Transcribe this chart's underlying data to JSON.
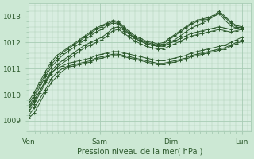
{
  "background_color": "#cce8d4",
  "plot_bg_color": "#d8ede0",
  "grid_color": "#a8ccb4",
  "line_color": "#2d5a2d",
  "ylabel_ticks": [
    1009,
    1010,
    1011,
    1012,
    1013
  ],
  "xlim": [
    0,
    75
  ],
  "ylim": [
    1008.6,
    1013.5
  ],
  "xlabel": "Pression niveau de la mer( hPa )",
  "xtick_positions": [
    0,
    24,
    48,
    72
  ],
  "xtick_labels": [
    "Ven",
    "Sam",
    "Dim",
    "Lun"
  ],
  "series": [
    [
      1009.5,
      1009.8,
      1010.15,
      1010.5,
      1010.85,
      1011.0,
      1011.1,
      1011.2,
      1011.25,
      1011.3,
      1011.35,
      1011.4,
      1011.5,
      1011.55,
      1011.6,
      1011.65,
      1011.65,
      1011.6,
      1011.55,
      1011.5,
      1011.45,
      1011.4,
      1011.35,
      1011.3,
      1011.3,
      1011.35,
      1011.4,
      1011.45,
      1011.5,
      1011.6,
      1011.65,
      1011.7,
      1011.75,
      1011.8,
      1011.85,
      1011.9,
      1012.0,
      1012.1,
      1012.2
    ],
    [
      1009.2,
      1009.5,
      1009.85,
      1010.2,
      1010.6,
      1010.85,
      1011.0,
      1011.1,
      1011.15,
      1011.2,
      1011.25,
      1011.3,
      1011.4,
      1011.45,
      1011.5,
      1011.55,
      1011.55,
      1011.5,
      1011.45,
      1011.4,
      1011.35,
      1011.3,
      1011.25,
      1011.2,
      1011.2,
      1011.25,
      1011.3,
      1011.35,
      1011.4,
      1011.5,
      1011.55,
      1011.6,
      1011.65,
      1011.7,
      1011.75,
      1011.8,
      1011.9,
      1012.0,
      1012.1
    ],
    [
      1009.1,
      1009.3,
      1009.7,
      1010.1,
      1010.45,
      1010.7,
      1010.9,
      1011.05,
      1011.1,
      1011.15,
      1011.2,
      1011.25,
      1011.35,
      1011.4,
      1011.45,
      1011.5,
      1011.5,
      1011.45,
      1011.4,
      1011.35,
      1011.3,
      1011.25,
      1011.2,
      1011.15,
      1011.15,
      1011.2,
      1011.25,
      1011.3,
      1011.35,
      1011.45,
      1011.5,
      1011.55,
      1011.6,
      1011.65,
      1011.7,
      1011.75,
      1011.85,
      1011.95,
      1012.05
    ],
    [
      1009.35,
      1009.65,
      1010.05,
      1010.45,
      1010.8,
      1011.05,
      1011.2,
      1011.35,
      1011.5,
      1011.65,
      1011.8,
      1011.9,
      1012.0,
      1012.1,
      1012.25,
      1012.45,
      1012.5,
      1012.35,
      1012.2,
      1012.05,
      1011.95,
      1011.85,
      1011.8,
      1011.75,
      1011.75,
      1011.85,
      1011.95,
      1012.05,
      1012.15,
      1012.25,
      1012.3,
      1012.35,
      1012.4,
      1012.45,
      1012.5,
      1012.45,
      1012.4,
      1012.45,
      1012.5
    ],
    [
      1009.45,
      1009.75,
      1010.15,
      1010.55,
      1010.9,
      1011.15,
      1011.3,
      1011.45,
      1011.6,
      1011.75,
      1011.9,
      1012.0,
      1012.1,
      1012.2,
      1012.35,
      1012.55,
      1012.6,
      1012.45,
      1012.3,
      1012.15,
      1012.05,
      1011.95,
      1011.9,
      1011.85,
      1011.85,
      1011.95,
      1012.05,
      1012.15,
      1012.25,
      1012.35,
      1012.4,
      1012.45,
      1012.5,
      1012.55,
      1012.6,
      1012.55,
      1012.5,
      1012.55,
      1012.6
    ],
    [
      1009.55,
      1009.9,
      1010.3,
      1010.7,
      1011.05,
      1011.3,
      1011.5,
      1011.65,
      1011.8,
      1011.95,
      1012.1,
      1012.25,
      1012.4,
      1012.5,
      1012.65,
      1012.75,
      1012.7,
      1012.5,
      1012.3,
      1012.15,
      1012.05,
      1011.95,
      1011.9,
      1011.85,
      1011.9,
      1012.0,
      1012.1,
      1012.25,
      1012.4,
      1012.55,
      1012.65,
      1012.75,
      1012.85,
      1013.0,
      1013.1,
      1012.85,
      1012.65,
      1012.55,
      1012.5
    ],
    [
      1009.65,
      1010.0,
      1010.4,
      1010.8,
      1011.15,
      1011.4,
      1011.6,
      1011.75,
      1011.9,
      1012.05,
      1012.2,
      1012.35,
      1012.5,
      1012.6,
      1012.7,
      1012.8,
      1012.75,
      1012.55,
      1012.35,
      1012.2,
      1012.1,
      1012.0,
      1011.95,
      1011.9,
      1011.95,
      1012.1,
      1012.25,
      1012.4,
      1012.55,
      1012.7,
      1012.8,
      1012.85,
      1012.9,
      1013.0,
      1013.15,
      1012.95,
      1012.75,
      1012.6,
      1012.55
    ],
    [
      1009.75,
      1010.1,
      1010.5,
      1010.9,
      1011.25,
      1011.5,
      1011.65,
      1011.8,
      1011.95,
      1012.1,
      1012.25,
      1012.4,
      1012.55,
      1012.65,
      1012.75,
      1012.85,
      1012.8,
      1012.6,
      1012.4,
      1012.25,
      1012.15,
      1012.05,
      1012.0,
      1011.95,
      1012.0,
      1012.15,
      1012.3,
      1012.45,
      1012.6,
      1012.75,
      1012.85,
      1012.9,
      1012.95,
      1013.05,
      1013.2,
      1013.0,
      1012.8,
      1012.65,
      1012.6
    ]
  ]
}
